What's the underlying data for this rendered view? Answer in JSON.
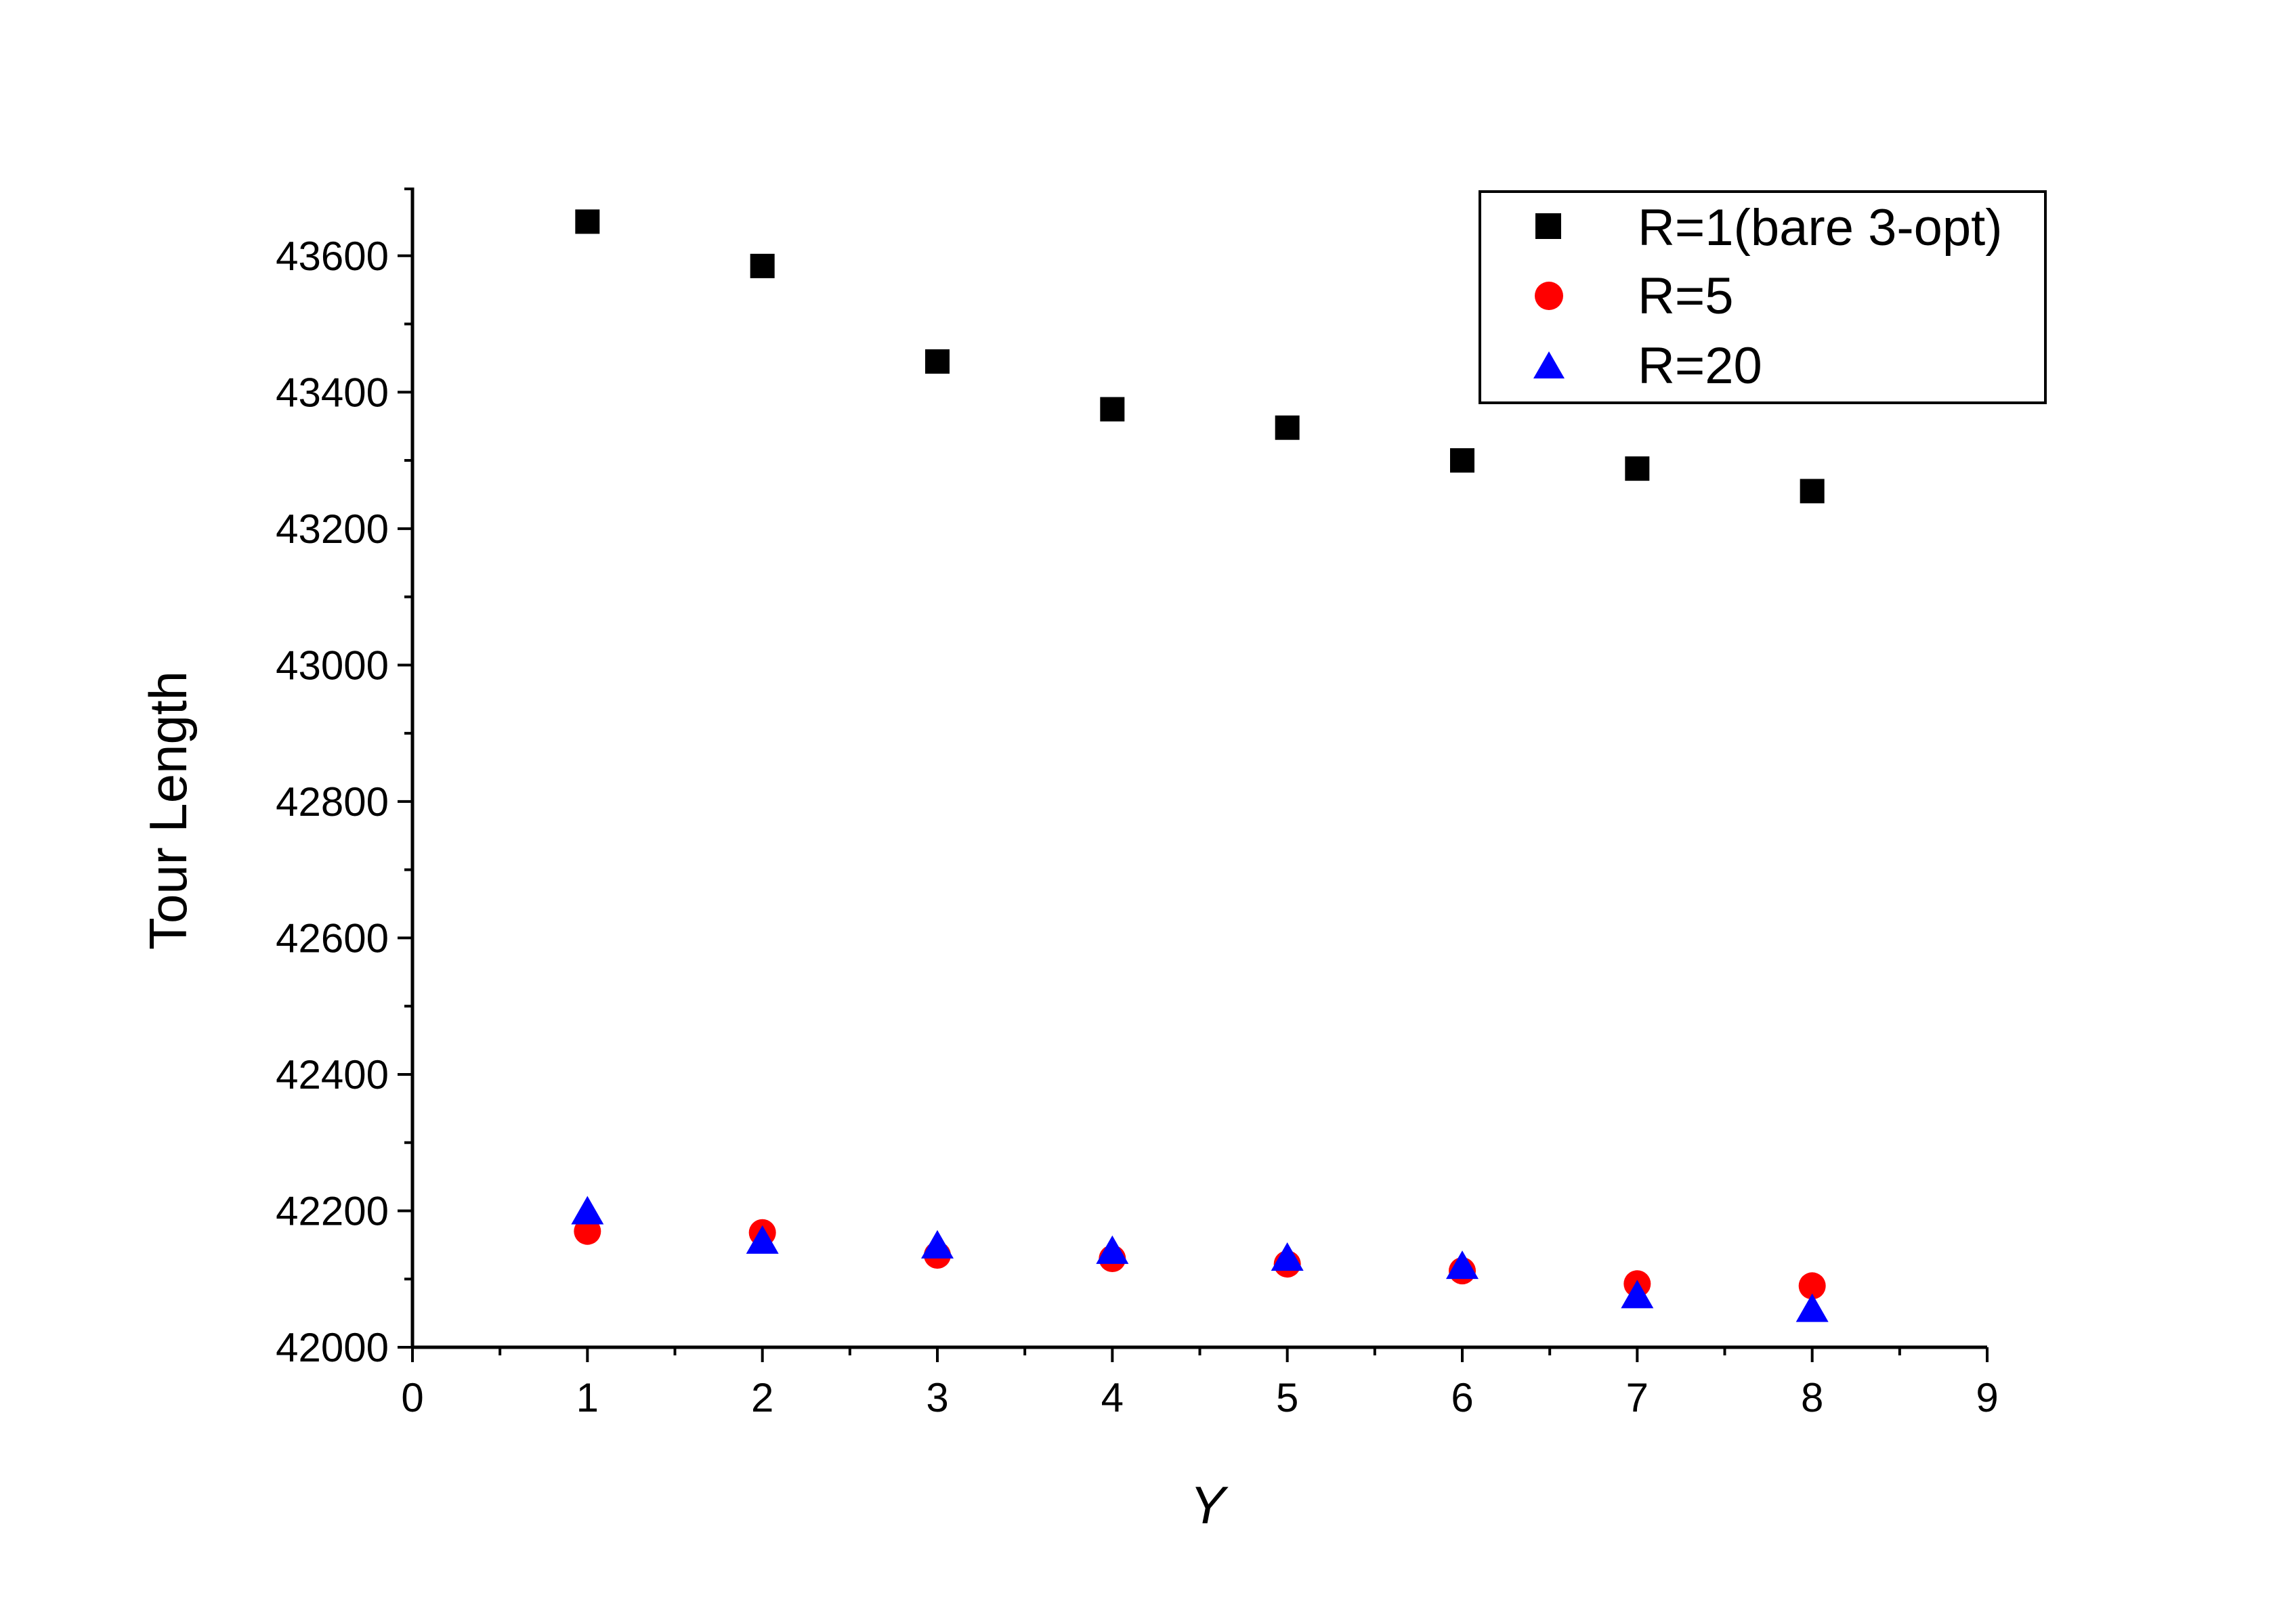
{
  "chart_data": {
    "type": "scatter",
    "xlabel": "Y",
    "ylabel": "Tour Length",
    "xlim": [
      0,
      9
    ],
    "ylim": [
      42000,
      43700
    ],
    "xticks": [
      0,
      1,
      2,
      3,
      4,
      5,
      6,
      7,
      8,
      9
    ],
    "yticks": [
      42000,
      42200,
      42400,
      42600,
      42800,
      43000,
      43200,
      43400,
      43600
    ],
    "grid": false,
    "legend_position": "top-right",
    "series": [
      {
        "name": "R=1(bare 3-opt)",
        "marker": "square",
        "color": "#000000",
        "x": [
          1,
          2,
          3,
          4,
          5,
          6,
          7,
          8
        ],
        "y": [
          43650,
          43585,
          43445,
          43375,
          43348,
          43300,
          43288,
          43255
        ]
      },
      {
        "name": "R=5",
        "marker": "circle",
        "color": "#ff0000",
        "x": [
          1,
          2,
          3,
          4,
          5,
          6,
          7,
          8
        ],
        "y": [
          42170,
          42168,
          42135,
          42130,
          42122,
          42112,
          42093,
          42090
        ]
      },
      {
        "name": "R=20",
        "marker": "triangle",
        "color": "#0000ff",
        "x": [
          1,
          2,
          3,
          4,
          5,
          6,
          7,
          8
        ],
        "y": [
          42198,
          42155,
          42148,
          42140,
          42130,
          42118,
          42075,
          42055
        ]
      }
    ]
  }
}
